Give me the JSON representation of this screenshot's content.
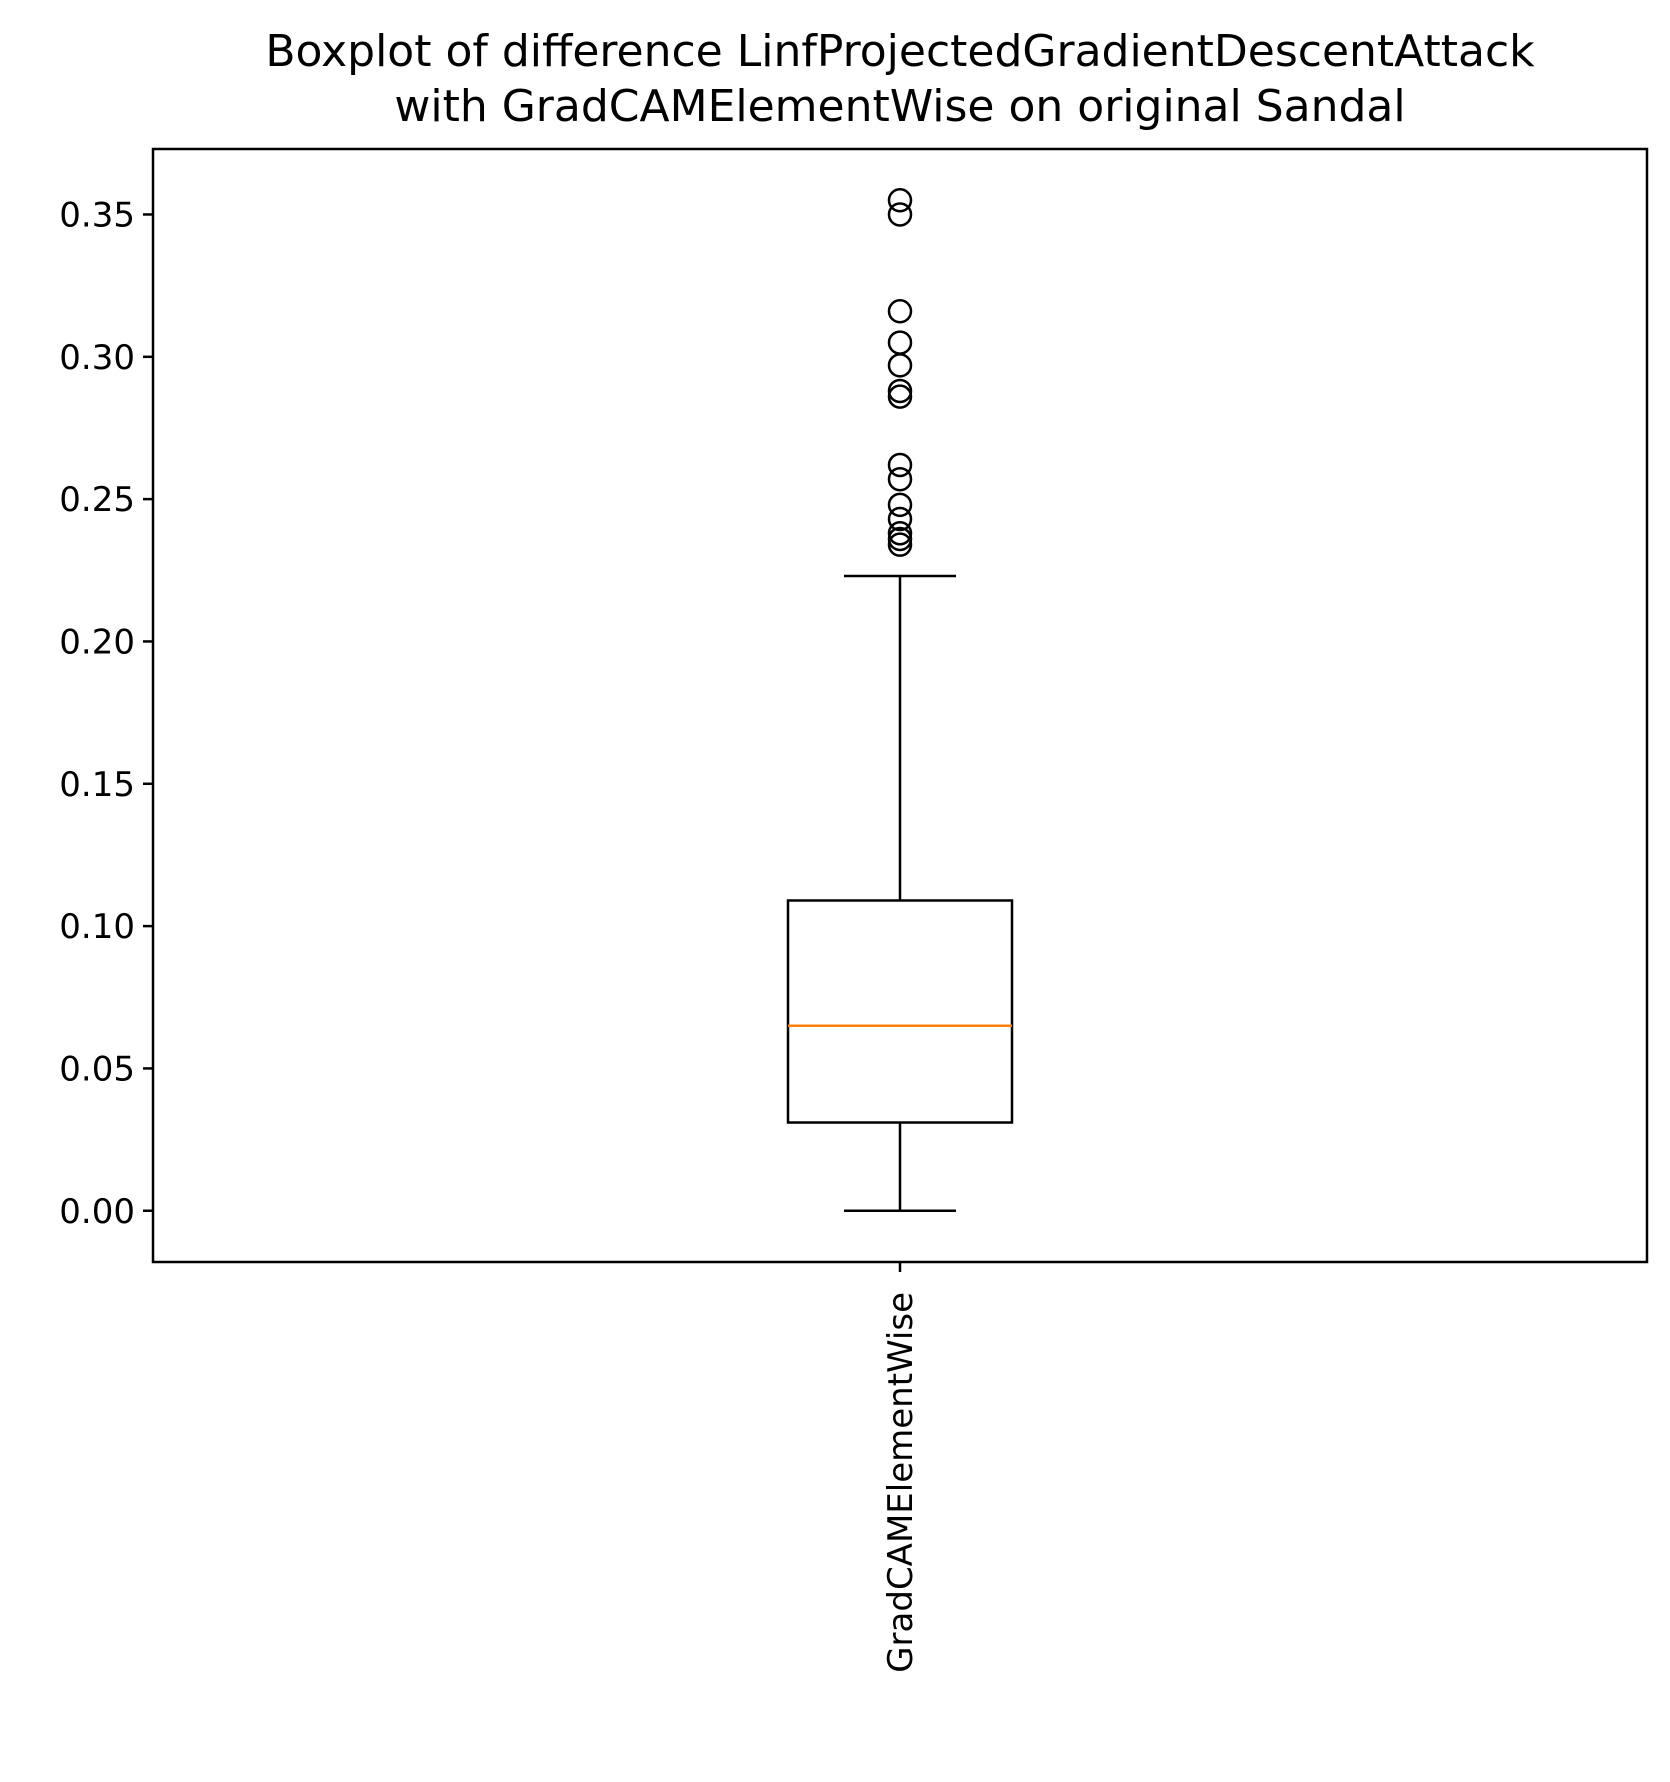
{
  "chart_data": {
    "type": "boxplot",
    "title_lines": [
      "Boxplot of difference LinfProjectedGradientDescentAttack",
      "with GradCAMElementWise on original Sandal"
    ],
    "xlabel": "",
    "ylabel": "",
    "ylim": [
      -0.018,
      0.373
    ],
    "yticks": [
      0.0,
      0.05,
      0.1,
      0.15,
      0.2,
      0.25,
      0.3,
      0.35
    ],
    "ytick_labels": [
      "0.00",
      "0.05",
      "0.10",
      "0.15",
      "0.20",
      "0.25",
      "0.30",
      "0.35"
    ],
    "categories": [
      "GradCAMElementWise"
    ],
    "category_label_rotation": 90,
    "grid": false,
    "legend": "none",
    "boxes": [
      {
        "category": "GradCAMElementWise",
        "whisker_low": 0.0,
        "q1": 0.031,
        "median": 0.065,
        "q3": 0.109,
        "whisker_high": 0.223,
        "outliers": [
          0.234,
          0.236,
          0.238,
          0.243,
          0.248,
          0.257,
          0.262,
          0.286,
          0.288,
          0.297,
          0.305,
          0.316,
          0.35,
          0.355
        ]
      }
    ],
    "colors": {
      "median": "#ff7f0e",
      "box": "#000000",
      "outlier_edge": "#000000"
    }
  }
}
